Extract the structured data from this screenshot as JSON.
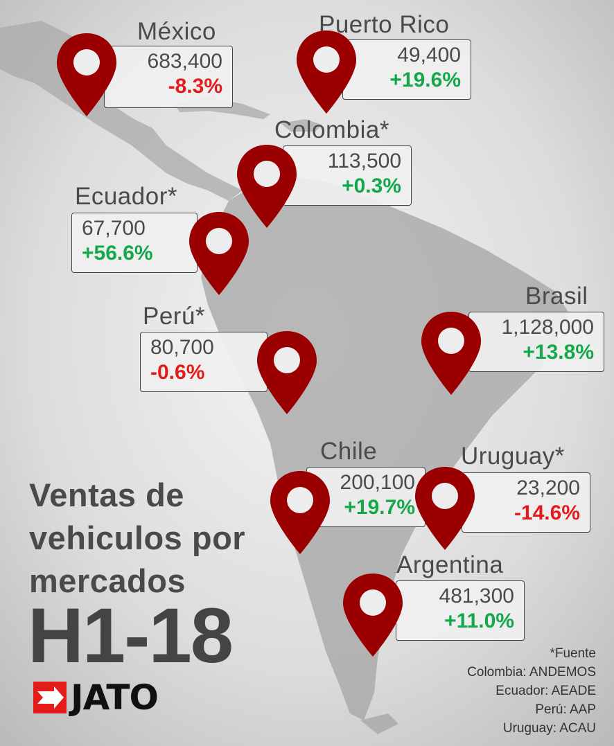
{
  "title_lines": [
    "Ventas de",
    "vehiculos por",
    "mercados"
  ],
  "period": "H1-18",
  "logo": {
    "text": "JATO",
    "icon": "jato-arrow-logo-icon"
  },
  "colors": {
    "pin": "#9b0000",
    "positive": "#13a84a",
    "negative": "#e31b1b",
    "text": "#4a4a4a"
  },
  "markets": [
    {
      "country": "México",
      "sales": "683,400",
      "change": "-8.3%",
      "trend": "neg"
    },
    {
      "country": "Puerto Rico",
      "sales": "49,400",
      "change": "+19.6%",
      "trend": "pos"
    },
    {
      "country": "Colombia*",
      "sales": "113,500",
      "change": "+0.3%",
      "trend": "pos"
    },
    {
      "country": "Ecuador*",
      "sales": "67,700",
      "change": "+56.6%",
      "trend": "pos"
    },
    {
      "country": "Perú*",
      "sales": "80,700",
      "change": "-0.6%",
      "trend": "neg"
    },
    {
      "country": "Brasil",
      "sales": "1,128,000",
      "change": "+13.8%",
      "trend": "pos"
    },
    {
      "country": "Chile",
      "sales": "200,100",
      "change": "+19.7%",
      "trend": "pos"
    },
    {
      "country": "Uruguay*",
      "sales": "23,200",
      "change": "-14.6%",
      "trend": "neg"
    },
    {
      "country": "Argentina",
      "sales": "481,300",
      "change": "+11.0%",
      "trend": "pos"
    }
  ],
  "sources": [
    "*Fuente",
    "Colombia: ANDEMOS",
    "Ecuador: AEADE",
    "Perú: AAP",
    "Uruguay: ACAU"
  ]
}
